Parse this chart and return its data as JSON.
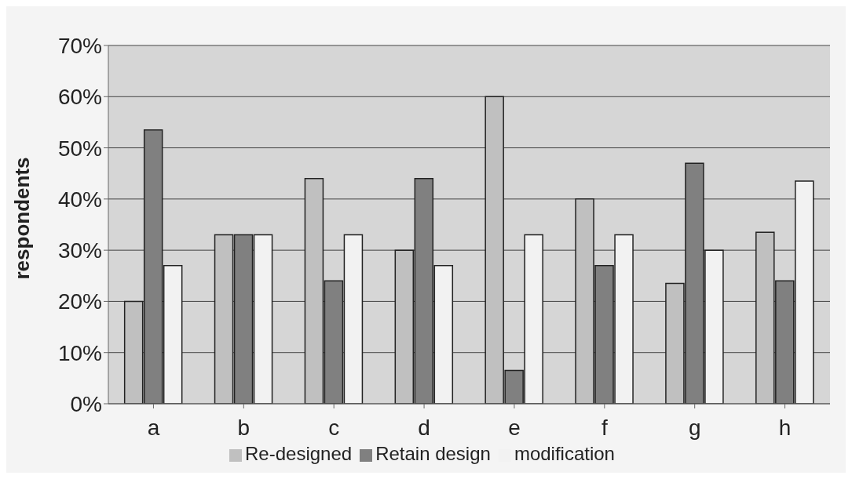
{
  "chart_data": {
    "type": "bar",
    "ylabel": "respondents",
    "categories": [
      "a",
      "b",
      "c",
      "d",
      "e",
      "f",
      "g",
      "h"
    ],
    "series": [
      {
        "name": "Re-designed",
        "color": "#c0c0c0",
        "values": [
          20,
          33,
          44,
          30,
          60,
          40,
          23.5,
          33.5
        ]
      },
      {
        "name": "Retain design",
        "color": "#808080",
        "values": [
          53.5,
          33,
          24,
          44,
          6.5,
          27,
          47,
          24
        ]
      },
      {
        "name": "modification",
        "color": "#f2f2f2",
        "values": [
          27,
          33,
          33,
          27,
          33,
          33,
          30,
          43.5
        ]
      }
    ],
    "ylim": [
      0,
      70
    ],
    "yticks": [
      {
        "value": 0,
        "label": "0%"
      },
      {
        "value": 10,
        "label": "10%"
      },
      {
        "value": 20,
        "label": "20%"
      },
      {
        "value": 30,
        "label": "30%"
      },
      {
        "value": 40,
        "label": "40%"
      },
      {
        "value": 50,
        "label": "50%"
      },
      {
        "value": 60,
        "label": "60%"
      },
      {
        "value": 70,
        "label": "70%"
      }
    ],
    "grid": "y",
    "legend": "bottom"
  }
}
